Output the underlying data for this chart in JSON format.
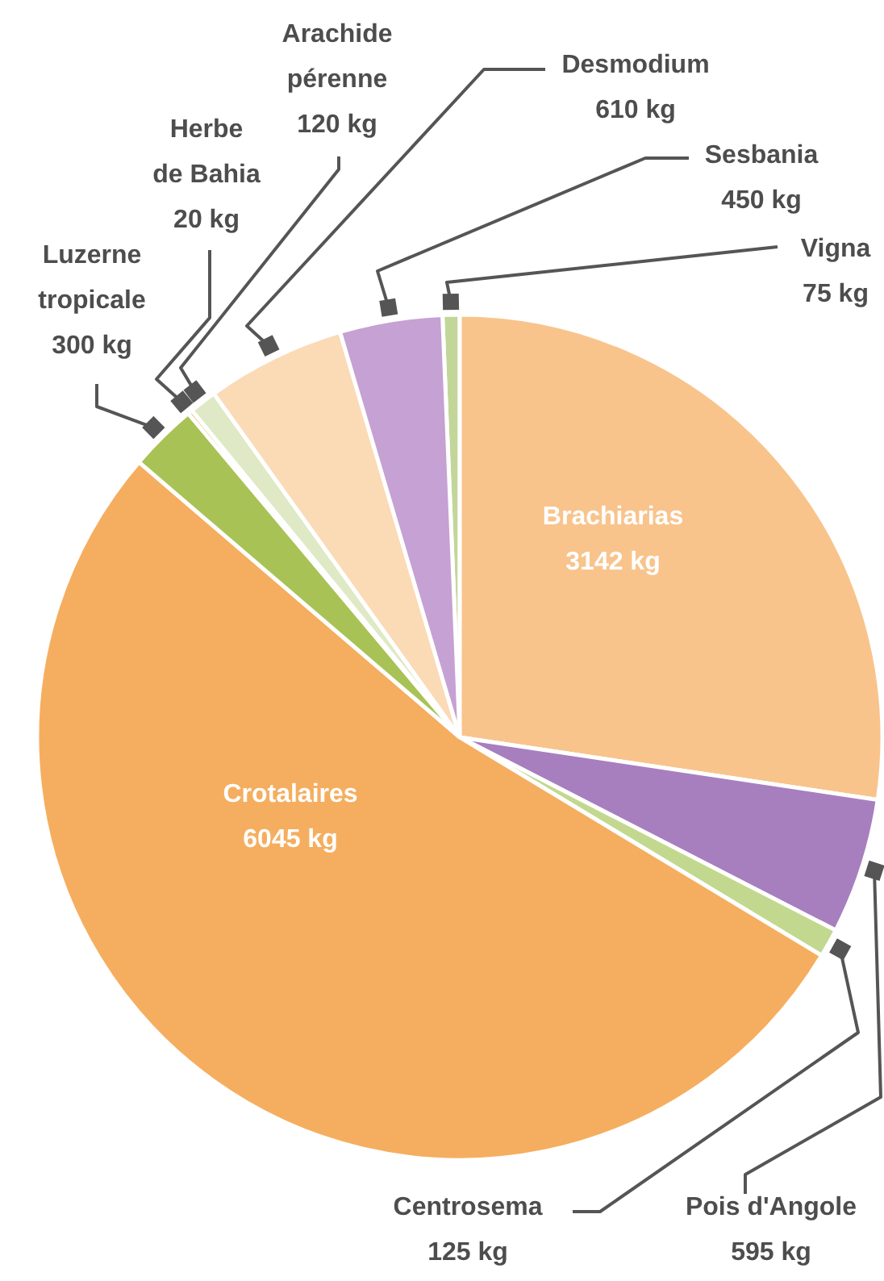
{
  "chart_data": {
    "type": "pie",
    "categories": [
      "Vigna",
      "Brachiarias",
      "Pois d'Angole",
      "Centrosema",
      "Crotalaires",
      "Luzerne tropicale",
      "Herbe de Bahia",
      "Arachide pérenne",
      "Desmodium",
      "Sesbania"
    ],
    "values": [
      75,
      3142,
      595,
      125,
      6045,
      300,
      20,
      120,
      610,
      450
    ],
    "value_labels": [
      "75 kg",
      "3142 kg",
      "595 kg",
      "125 kg",
      "6045 kg",
      "300 kg",
      "20 kg",
      "120 kg",
      "610 kg",
      "450 kg"
    ],
    "colors": [
      "#c2d69a",
      "#f8c48c",
      "#a77fbf",
      "#c3d88f",
      "#f5ae5f",
      "#a9c255",
      "#ee8a2a",
      "#dfe9c6",
      "#fbdab6",
      "#c6a1d3"
    ]
  }
}
